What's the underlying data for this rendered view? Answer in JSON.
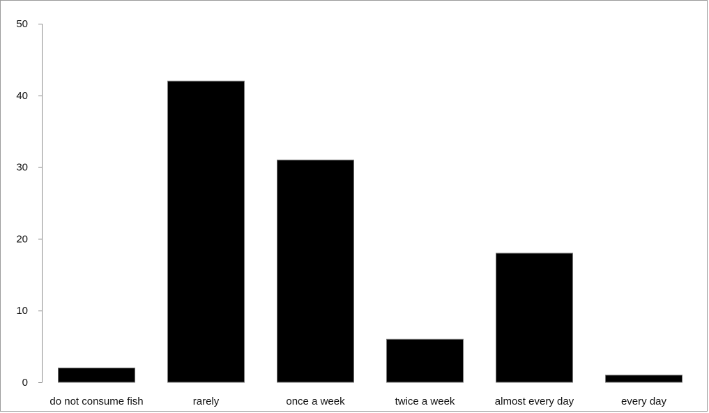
{
  "chart_data": {
    "type": "bar",
    "categories": [
      "do not consume fish",
      "rarely",
      "once a week",
      "twice a week",
      "almost every day",
      "every day"
    ],
    "values": [
      2,
      42,
      31,
      6,
      18,
      1
    ],
    "title": "",
    "xlabel": "",
    "ylabel": "",
    "ylim": [
      0,
      50
    ],
    "yticks": [
      0,
      10,
      20,
      30,
      40,
      50
    ],
    "ytick_labels": [
      "0",
      "10",
      "20",
      "30",
      "40",
      "50"
    ],
    "bar_color": "#000000",
    "grid": false,
    "legend": "none"
  }
}
